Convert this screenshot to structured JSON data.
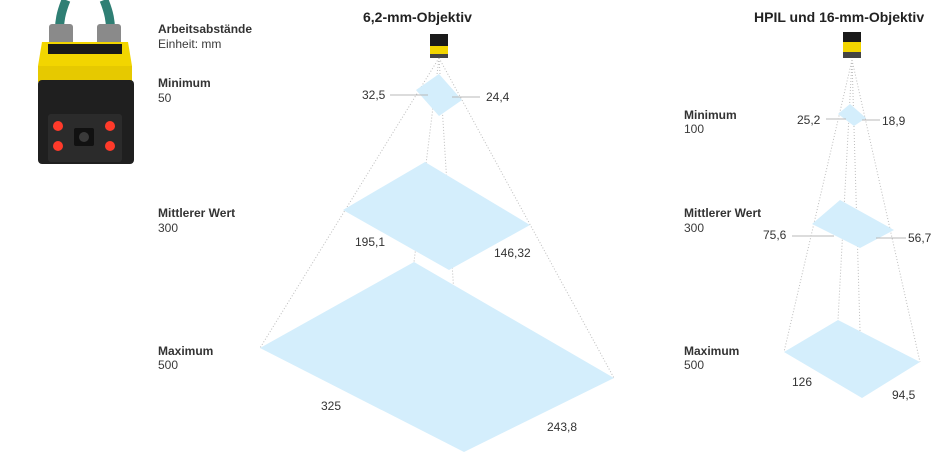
{
  "header": {
    "title": "Arbeitsabstände",
    "unit": "Einheit: mm"
  },
  "lens_a": {
    "title": "6,2-mm-Objektiv",
    "levels": [
      {
        "name": "Minimum",
        "distance": "50",
        "width": "32,5",
        "height": "24,4"
      },
      {
        "name": "Mittlerer Wert",
        "distance": "300",
        "width": "195,1",
        "height": "146,32"
      },
      {
        "name": "Maximum",
        "distance": "500",
        "width": "325",
        "height": "243,8"
      }
    ]
  },
  "lens_b": {
    "title": "HPIL und 16-mm-Objektiv",
    "levels": [
      {
        "name": "Minimum",
        "distance": "100",
        "width": "25,2",
        "height": "18,9"
      },
      {
        "name": "Mittlerer Wert",
        "distance": "300",
        "width": "75,6",
        "height": "56,7"
      },
      {
        "name": "Maximum",
        "distance": "500",
        "width": "126",
        "height": "94,5"
      }
    ]
  },
  "colors": {
    "field": "#d4eefc",
    "camera_yellow": "#f2d500",
    "camera_black": "#1a1a1a",
    "cable": "#2f7f74",
    "led": "#ff3a2a",
    "guide_line": "#b8b8b8"
  },
  "icons": [
    "camera-photo",
    "camera-small-icon"
  ]
}
